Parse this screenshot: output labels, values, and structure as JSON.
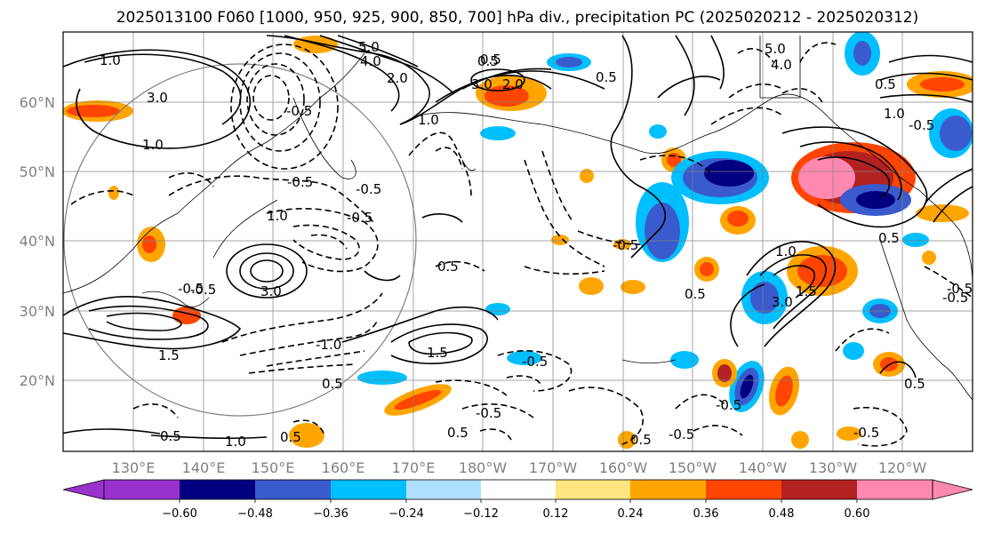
{
  "title": "2025013100 F060 [1000, 950, 925, 900, 850, 700] hPa div., precipitation PC (2025020212 - 2025020312)",
  "map": {
    "lat_ticks": [
      "60°N",
      "50°N",
      "40°N",
      "30°N",
      "20°N"
    ],
    "lon_ticks": [
      "130°E",
      "140°E",
      "150°E",
      "160°E",
      "170°E",
      "180°W",
      "170°W",
      "160°W",
      "150°W",
      "140°W",
      "130°W",
      "120°W"
    ],
    "gridline_color": "#808080"
  },
  "contour_labels": [
    "1.0",
    "3.0",
    "5.0",
    "4.0",
    "2.0",
    "0.5",
    "-0.5",
    "1.0",
    "-0.5",
    "3.0",
    "0.5",
    "1.5",
    "-1.0",
    "-0.5",
    "1.0",
    "-0.5",
    "1.5",
    "0.5",
    "-0.5",
    "0.5",
    "1.0",
    "0.5",
    "-0.5",
    "0.5",
    "-0.5",
    "0.5",
    "-0.5",
    "1.0",
    "3.0",
    "1.5",
    "-0.5",
    "0.5",
    "5.0",
    "4.0",
    "-0.5",
    "1.0",
    "0.5",
    "2.0",
    "3.0",
    "0.5",
    "-0.5",
    "0.5",
    "-0.5",
    "0.5",
    "1.0",
    "-0.5",
    "0.5",
    "-0.5",
    "-0.5"
  ],
  "colorbar": {
    "ticks": [
      "−0.60",
      "−0.48",
      "−0.36",
      "−0.24",
      "−0.12",
      "0.12",
      "0.24",
      "0.36",
      "0.48",
      "0.60"
    ],
    "colors": [
      "#9932cc",
      "#000080",
      "#3a5bcd",
      "#00bfff",
      "#b0e0ff",
      "#ffffff",
      "#ffe680",
      "#ffa500",
      "#ff4500",
      "#b22222",
      "#ff88b0"
    ]
  }
}
